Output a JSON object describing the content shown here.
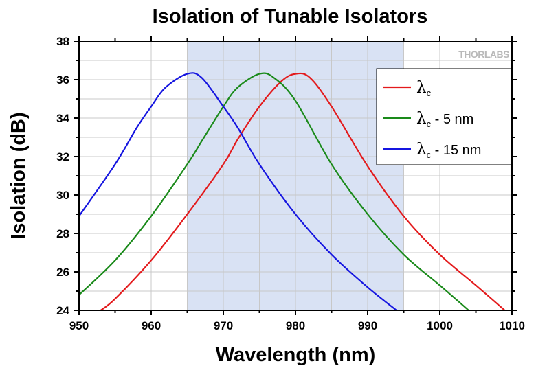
{
  "chart_data": {
    "type": "line",
    "title": "Isolation of Tunable Isolators",
    "xlabel": "Wavelength (nm)",
    "ylabel": "Isolation (dB)",
    "xlim": [
      950,
      1010
    ],
    "ylim": [
      24,
      38
    ],
    "xticks": [
      950,
      960,
      970,
      980,
      990,
      1000,
      1010
    ],
    "yticks": [
      24,
      26,
      28,
      30,
      32,
      34,
      36,
      38
    ],
    "grid": true,
    "legend_position": "top-right",
    "shaded_band": {
      "x": [
        965,
        995
      ],
      "color": "#d9e2f4"
    },
    "watermark": "THORLABS",
    "series": [
      {
        "name": "λc",
        "symbol": "λ",
        "subscript": "c",
        "suffix": "",
        "color": "#e31a1c",
        "x": [
          953,
          955,
          960,
          965,
          970,
          972,
          975,
          978,
          980,
          982,
          985,
          990,
          995,
          1000,
          1005,
          1009
        ],
        "y": [
          24.0,
          24.6,
          26.6,
          29.0,
          31.6,
          32.9,
          34.6,
          35.9,
          36.3,
          36.1,
          34.6,
          31.5,
          28.9,
          26.9,
          25.3,
          24.0
        ]
      },
      {
        "name": "λc - 5 nm",
        "symbol": "λ",
        "subscript": "c",
        "suffix": " - 5 nm",
        "color": "#1a8a1a",
        "x": [
          950,
          955,
          960,
          965,
          967,
          970,
          972,
          975,
          977,
          980,
          985,
          990,
          995,
          1000,
          1004
        ],
        "y": [
          24.8,
          26.6,
          28.9,
          31.6,
          32.8,
          34.6,
          35.6,
          36.3,
          36.1,
          34.9,
          31.6,
          29.0,
          26.9,
          25.3,
          24.0
        ]
      },
      {
        "name": "λc - 15 nm",
        "symbol": "λ",
        "subscript": "c",
        "suffix": " - 15 nm",
        "color": "#1515e0",
        "x": [
          950,
          955,
          958,
          960,
          962,
          965,
          967,
          970,
          972,
          975,
          980,
          985,
          990,
          994
        ],
        "y": [
          28.9,
          31.6,
          33.5,
          34.6,
          35.6,
          36.3,
          36.1,
          34.6,
          33.5,
          31.6,
          29.0,
          26.9,
          25.2,
          24.0
        ]
      }
    ]
  }
}
